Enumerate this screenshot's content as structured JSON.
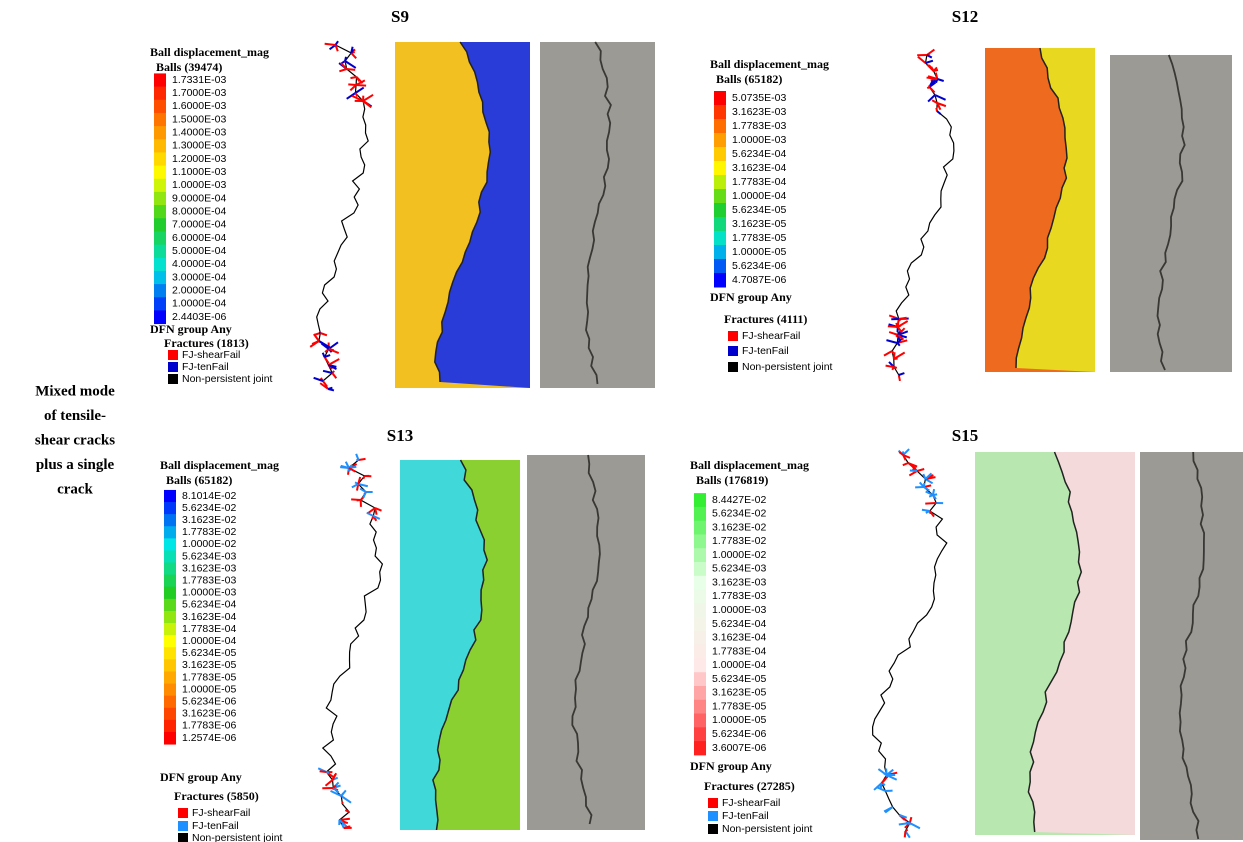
{
  "side_label": [
    "Mixed mode",
    "of tensile-",
    "shear cracks",
    "plus a single",
    "crack"
  ],
  "panels": [
    {
      "title": "S9",
      "legend_title": "Ball displacement_mag",
      "balls": "Balls (39474)",
      "ramp": [
        "#ff0000",
        "#ff8c00",
        "#ffff00",
        "#22cc22",
        "#00e5e5",
        "#0000ff"
      ],
      "scale": [
        "1.7331E-03",
        "1.7000E-03",
        "1.6000E-03",
        "1.5000E-03",
        "1.4000E-03",
        "1.3000E-03",
        "1.2000E-03",
        "1.1000E-03",
        "1.0000E-03",
        "9.0000E-04",
        "8.0000E-04",
        "7.0000E-04",
        "6.0000E-04",
        "5.0000E-04",
        "4.0000E-04",
        "3.0000E-04",
        "2.0000E-04",
        "1.0000E-04",
        "2.4403E-06"
      ],
      "dfn_title": "DFN group Any",
      "fractures": "Fractures (1813)",
      "fracture_types": [
        {
          "label": "FJ-shearFail",
          "color": "#ff0000"
        },
        {
          "label": "FJ-tenFail",
          "color": "#0000cc"
        },
        {
          "label": "Non-persistent joint",
          "color": "#000000"
        }
      ]
    },
    {
      "title": "S12",
      "legend_title": "Ball displacement_mag",
      "balls": "Balls (65182)",
      "ramp": [
        "#ff0000",
        "#ff8c00",
        "#ffff00",
        "#22cc22",
        "#00e5e5",
        "#0000ff"
      ],
      "scale": [
        "5.0735E-03",
        "3.1623E-03",
        "1.7783E-03",
        "1.0000E-03",
        "5.6234E-04",
        "3.1623E-04",
        "1.7783E-04",
        "1.0000E-04",
        "5.6234E-05",
        "3.1623E-05",
        "1.7783E-05",
        "1.0000E-05",
        "5.6234E-06",
        "4.7087E-06"
      ],
      "dfn_title": "DFN group Any",
      "fractures": "Fractures (4111)",
      "fracture_types": [
        {
          "label": "FJ-shearFail",
          "color": "#ff0000"
        },
        {
          "label": "FJ-tenFail",
          "color": "#0000cc"
        },
        {
          "label": "Non-persistent joint",
          "color": "#000000"
        }
      ]
    },
    {
      "title": "S13",
      "legend_title": "Ball displacement_mag",
      "balls": "Balls (65182)",
      "ramp": [
        "#0000ff",
        "#00e5e5",
        "#22cc22",
        "#ffff00",
        "#ff8c00",
        "#ff0000"
      ],
      "scale": [
        "8.1014E-02",
        "5.6234E-02",
        "3.1623E-02",
        "1.7783E-02",
        "1.0000E-02",
        "5.6234E-03",
        "3.1623E-03",
        "1.7783E-03",
        "1.0000E-03",
        "5.6234E-04",
        "3.1623E-04",
        "1.7783E-04",
        "1.0000E-04",
        "5.6234E-05",
        "3.1623E-05",
        "1.7783E-05",
        "1.0000E-05",
        "5.6234E-06",
        "3.1623E-06",
        "1.7783E-06",
        "1.2574E-06"
      ],
      "dfn_title": "DFN group Any",
      "fractures": "Fractures (5850)",
      "fracture_types": [
        {
          "label": "FJ-shearFail",
          "color": "#ff0000"
        },
        {
          "label": "FJ-tenFail",
          "color": "#1e90ff"
        },
        {
          "label": "Non-persistent joint",
          "color": "#000000"
        }
      ]
    },
    {
      "title": "S15",
      "legend_title": "Ball displacement_mag",
      "balls": "Balls (176819)",
      "ramp": [
        "#33ee33",
        "#e8ffe8",
        "#ffe8e8",
        "#ff2020"
      ],
      "scale": [
        "8.4427E-02",
        "5.6234E-02",
        "3.1623E-02",
        "1.7783E-02",
        "1.0000E-02",
        "5.6234E-03",
        "3.1623E-03",
        "1.7783E-03",
        "1.0000E-03",
        "5.6234E-04",
        "3.1623E-04",
        "1.7783E-04",
        "1.0000E-04",
        "5.6234E-05",
        "3.1623E-05",
        "1.7783E-05",
        "1.0000E-05",
        "5.6234E-06",
        "3.6007E-06"
      ],
      "dfn_title": "DFN group Any",
      "fractures": "Fractures (27285)",
      "fracture_types": [
        {
          "label": "FJ-shearFail",
          "color": "#ff0000"
        },
        {
          "label": "FJ-tenFail",
          "color": "#1e90ff"
        },
        {
          "label": "Non-persistent joint",
          "color": "#000000"
        }
      ]
    }
  ]
}
